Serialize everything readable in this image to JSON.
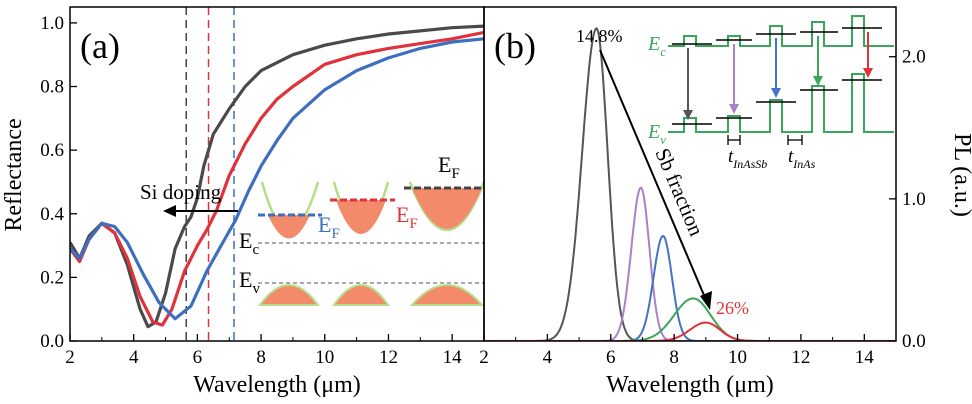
{
  "chart_data": [
    {
      "panel": "(a)",
      "type": "line",
      "xlabel": "Wavelength (μm)",
      "ylabel": "Reflectance",
      "xlim": [
        2,
        15
      ],
      "ylim": [
        0,
        1.05
      ],
      "xticks": [
        "2",
        "4",
        "6",
        "8",
        "10",
        "12",
        "14"
      ],
      "yticks": [
        "0.0",
        "0.2",
        "0.4",
        "0.6",
        "0.8",
        "1.0"
      ],
      "series": [
        {
          "name": "dark-gray",
          "color": "#4a4a4a",
          "x": [
            2,
            2.3,
            2.6,
            3,
            3.4,
            3.8,
            4.2,
            4.45,
            4.7,
            5,
            5.3,
            5.6,
            5.8,
            6,
            6.2,
            6.5,
            7,
            7.5,
            8,
            9,
            10,
            11,
            12,
            13,
            14,
            15
          ],
          "y": [
            0.31,
            0.26,
            0.33,
            0.37,
            0.34,
            0.24,
            0.1,
            0.045,
            0.06,
            0.15,
            0.29,
            0.36,
            0.39,
            0.45,
            0.55,
            0.65,
            0.73,
            0.8,
            0.85,
            0.9,
            0.93,
            0.95,
            0.965,
            0.975,
            0.985,
            0.99
          ]
        },
        {
          "name": "red",
          "color": "#e0323a",
          "x": [
            2,
            2.3,
            2.6,
            3,
            3.4,
            3.8,
            4.2,
            4.6,
            4.9,
            5.2,
            5.6,
            6,
            6.3,
            6.6,
            7,
            7.5,
            8,
            8.5,
            9,
            10,
            11,
            12,
            13,
            14,
            15
          ],
          "y": [
            0.29,
            0.25,
            0.32,
            0.37,
            0.34,
            0.26,
            0.14,
            0.06,
            0.05,
            0.1,
            0.22,
            0.3,
            0.35,
            0.41,
            0.52,
            0.62,
            0.7,
            0.76,
            0.8,
            0.87,
            0.9,
            0.92,
            0.935,
            0.95,
            0.97
          ]
        },
        {
          "name": "blue",
          "color": "#3e6fbf",
          "x": [
            2,
            2.3,
            2.6,
            3,
            3.4,
            3.8,
            4.3,
            4.8,
            5.3,
            5.8,
            6.3,
            6.8,
            7.2,
            7.6,
            8,
            8.5,
            9,
            10,
            11,
            12,
            13,
            14,
            15
          ],
          "y": [
            0.29,
            0.26,
            0.32,
            0.37,
            0.36,
            0.31,
            0.21,
            0.12,
            0.07,
            0.11,
            0.22,
            0.31,
            0.38,
            0.47,
            0.55,
            0.63,
            0.7,
            0.79,
            0.85,
            0.89,
            0.92,
            0.94,
            0.95
          ]
        }
      ],
      "vlines": [
        {
          "x": 5.65,
          "color": "#444444"
        },
        {
          "x": 6.35,
          "color": "#e0323a"
        },
        {
          "x": 7.15,
          "color": "#3e6fbf"
        }
      ],
      "annotations": {
        "si_doping": "Si doping",
        "ef_main": "E",
        "ef_main_sub": "F",
        "ec_main": "E",
        "ec_main_sub": "c",
        "ev_main": "E",
        "ev_main_sub": "v",
        "ef_blue": "E",
        "ef_blue_sub": "F",
        "ef_red": "E",
        "ef_red_sub": "F",
        "ef_color_blue": "#3e6fbf",
        "ef_color_red": "#e0323a"
      }
    },
    {
      "panel": "(b)",
      "type": "line",
      "xlabel": "Wavelength (μm)",
      "ylabel": "PL (a.u.)",
      "xlim": [
        2,
        15
      ],
      "ylim": [
        0,
        2.35
      ],
      "xticks": [
        "2",
        "4",
        "6",
        "8",
        "10",
        "12",
        "14"
      ],
      "yticks": [
        "0.0",
        "1.0",
        "2.0"
      ],
      "series": [
        {
          "name": "14.8% Sb",
          "color": "#555555",
          "center": 5.55,
          "amp": 2.2,
          "wl": 0.45,
          "wr": 0.35
        },
        {
          "name": "violet",
          "color": "#a883c7",
          "center": 6.95,
          "amp": 1.08,
          "wl": 0.3,
          "wr": 0.27
        },
        {
          "name": "blue",
          "color": "#4472c4",
          "center": 7.65,
          "amp": 0.74,
          "wl": 0.3,
          "wr": 0.28
        },
        {
          "name": "green",
          "color": "#3aa65a",
          "center": 8.6,
          "amp": 0.3,
          "wl": 0.6,
          "wr": 0.55
        },
        {
          "name": "26% Sb",
          "color": "#e0323a",
          "center": 9.0,
          "amp": 0.13,
          "wl": 0.5,
          "wr": 0.45
        }
      ],
      "annotations": {
        "peak_label": "14.8%",
        "end_label": "26%",
        "arrow_label": "Sb fraction",
        "ec": "E",
        "ec_sub": "c",
        "ev": "E",
        "ev_sub": "v",
        "t1": "t",
        "t1_sub": "InAsSb",
        "t2": "t",
        "t2_sub": "InAs"
      }
    }
  ],
  "panels": {
    "a_label": "(a)",
    "b_label": "(b)"
  }
}
